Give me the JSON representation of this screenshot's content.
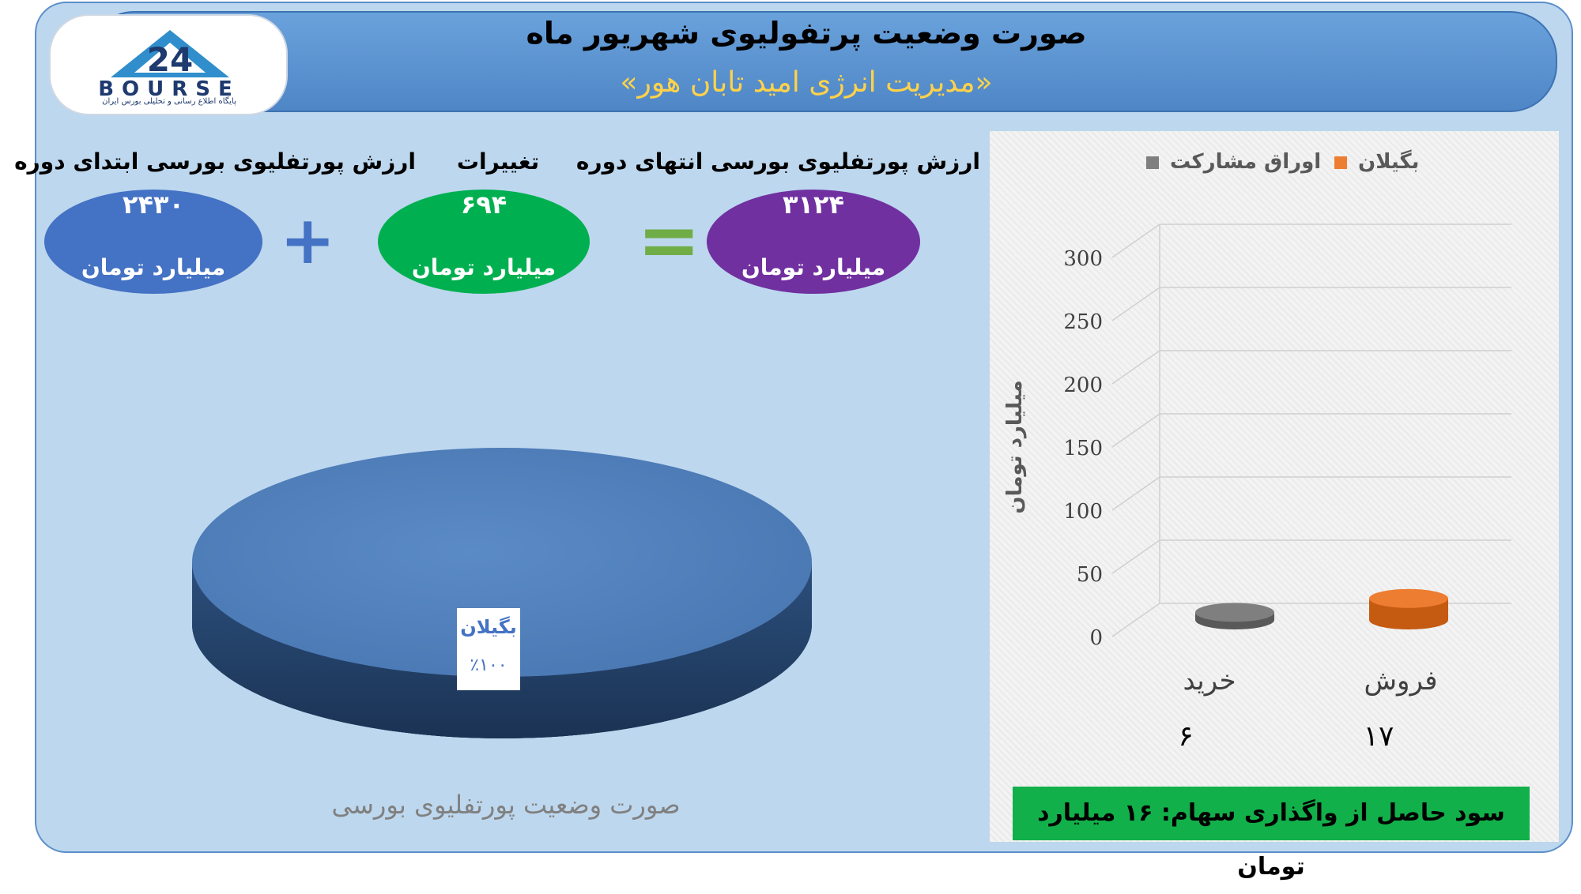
{
  "header": {
    "title": "صورت وضعیت پرتفولیوی شهریور ماه",
    "subtitle": "«مدیریت انرژی امید تابان هور»"
  },
  "logo": {
    "text": "BOURSE",
    "subtext": "پایگاه اطلاع رسانی و تحلیلی بورس ایران",
    "number": "24",
    "color": "#2f7fc1"
  },
  "summary": {
    "start": {
      "label": "ارزش پورتفلیوی بورسی ابتدای دوره",
      "value": "۲۴۳۰",
      "unit": "میلیارد تومان",
      "color": "#4472c4"
    },
    "change": {
      "label": "تغییرات",
      "value": "۶۹۴",
      "unit": "میلیارد تومان",
      "color": "#00b050"
    },
    "end": {
      "label": "ارزش پورتفلیوی بورسی انتهای دوره",
      "value": "۳۱۲۴",
      "unit": "میلیارد تومان",
      "color": "#7030a0"
    },
    "plus_sign": "+",
    "equals_sign": "=",
    "plus_color": "#4472c4",
    "equals_color": "#70ad47"
  },
  "chart_data": [
    {
      "type": "pie",
      "title": "صورت وضعیت پورتفلیوی بورسی",
      "slices": [
        {
          "label": "بگیلان",
          "value": 100,
          "display": "٪۱۰۰",
          "color": "#4f81bd"
        }
      ]
    },
    {
      "type": "bar",
      "categories": [
        "خرید",
        "فروش"
      ],
      "category_values_display": [
        "۶",
        "۱۷"
      ],
      "series": [
        {
          "name": "اوراق مشارکت",
          "values": [
            6,
            0
          ],
          "color": "#7f7f7f"
        },
        {
          "name": "بگیلان",
          "values": [
            0,
            17
          ],
          "color": "#ed7d31"
        }
      ],
      "ylabel": "میلیارد تومان",
      "ylim": [
        0,
        300
      ],
      "yticks": [
        0,
        50,
        100,
        150,
        200,
        250,
        300
      ],
      "grid": true,
      "legend": "top"
    }
  ],
  "profit": {
    "text": "سود حاصل از واگذاری سهام: ۱۶ میلیارد تومان"
  }
}
